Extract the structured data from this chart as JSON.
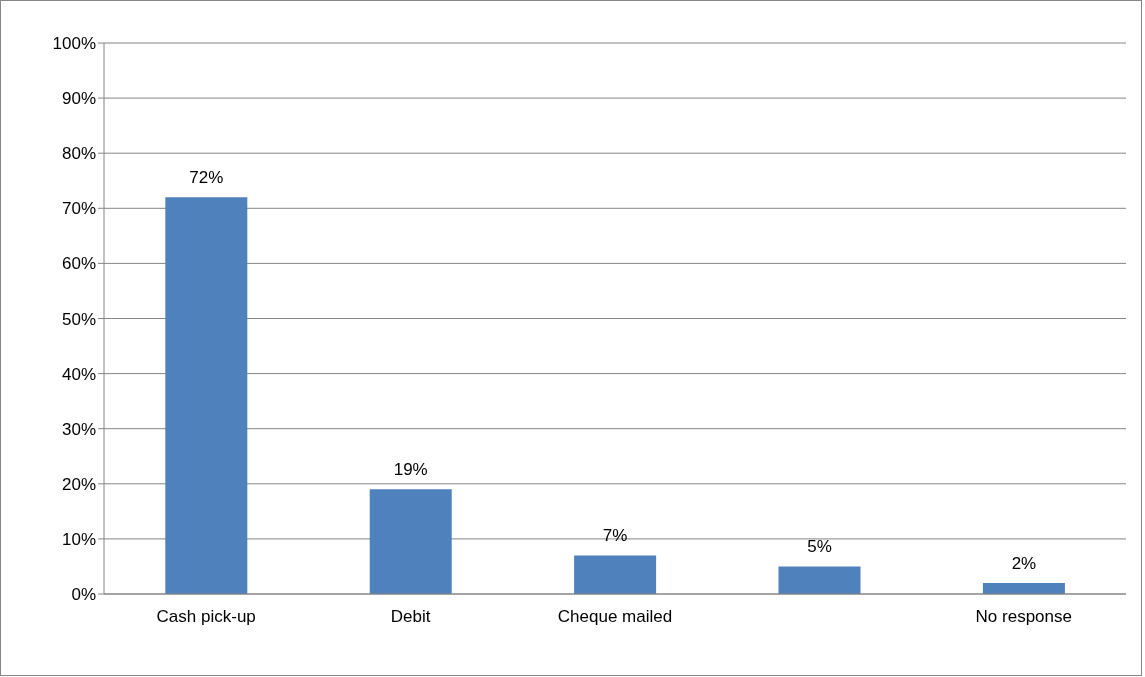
{
  "chart_data": {
    "type": "bar",
    "categories": [
      "Cash pick-up",
      "Debit",
      "Cheque mailed",
      null,
      "No response"
    ],
    "values": [
      72,
      19,
      7,
      5,
      2
    ],
    "value_labels": [
      "72%",
      "19%",
      "7%",
      "5%",
      "2%"
    ],
    "color": "#4f81bd",
    "ylim": [
      0,
      100
    ],
    "yticks": [
      {
        "value": 0,
        "label": "0%"
      },
      {
        "value": 10,
        "label": "10%"
      },
      {
        "value": 20,
        "label": "20%"
      },
      {
        "value": 30,
        "label": "30%"
      },
      {
        "value": 40,
        "label": "40%"
      },
      {
        "value": 50,
        "label": "50%"
      },
      {
        "value": 60,
        "label": "60%"
      },
      {
        "value": 70,
        "label": "70%"
      },
      {
        "value": 80,
        "label": "80%"
      },
      {
        "value": 90,
        "label": "90%"
      },
      {
        "value": 100,
        "label": "100%"
      }
    ],
    "grid": "y",
    "legend": false
  }
}
